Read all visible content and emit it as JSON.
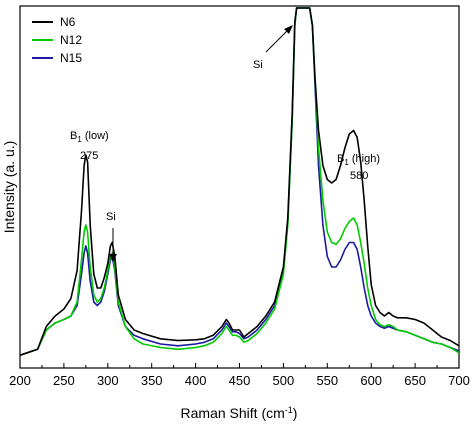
{
  "chart_data": {
    "type": "line",
    "xlabel": "Raman Shift (cm",
    "xlabel_sup": "-1",
    "xlabel_end": ")",
    "ylabel": "Intensity (a. u.)",
    "xlim": [
      200,
      700
    ],
    "ylim": [
      0,
      100
    ],
    "xticks": [
      200,
      250,
      300,
      350,
      400,
      450,
      500,
      550,
      600,
      650,
      700
    ],
    "yticks_shown": false,
    "legend_position": "top-left",
    "series": [
      {
        "name": "N6",
        "color": "#000000",
        "points": [
          [
            200,
            0.8
          ],
          [
            220,
            2.5
          ],
          [
            230,
            9
          ],
          [
            240,
            12
          ],
          [
            250,
            14
          ],
          [
            258,
            17
          ],
          [
            265,
            25
          ],
          [
            270,
            42
          ],
          [
            273,
            55
          ],
          [
            275,
            58
          ],
          [
            277,
            56
          ],
          [
            280,
            38
          ],
          [
            284,
            24
          ],
          [
            288,
            20
          ],
          [
            292,
            20
          ],
          [
            296,
            23
          ],
          [
            300,
            27
          ],
          [
            303,
            32
          ],
          [
            305,
            33
          ],
          [
            308,
            29
          ],
          [
            312,
            18
          ],
          [
            320,
            11
          ],
          [
            330,
            8
          ],
          [
            340,
            7
          ],
          [
            360,
            5.5
          ],
          [
            380,
            5
          ],
          [
            400,
            5.2
          ],
          [
            410,
            5.5
          ],
          [
            420,
            6.5
          ],
          [
            430,
            9
          ],
          [
            435,
            11
          ],
          [
            438,
            10
          ],
          [
            442,
            8
          ],
          [
            446,
            8
          ],
          [
            450,
            8
          ],
          [
            455,
            6
          ],
          [
            460,
            7
          ],
          [
            470,
            9
          ],
          [
            480,
            12
          ],
          [
            490,
            16
          ],
          [
            500,
            26
          ],
          [
            505,
            40
          ],
          [
            510,
            70
          ],
          [
            513,
            96
          ],
          [
            515,
            100
          ],
          [
            530,
            100
          ],
          [
            533,
            95
          ],
          [
            536,
            80
          ],
          [
            540,
            65
          ],
          [
            545,
            55
          ],
          [
            550,
            51
          ],
          [
            555,
            50
          ],
          [
            560,
            51
          ],
          [
            565,
            55
          ],
          [
            570,
            60
          ],
          [
            575,
            64
          ],
          [
            580,
            65
          ],
          [
            584,
            63
          ],
          [
            588,
            56
          ],
          [
            592,
            45
          ],
          [
            596,
            32
          ],
          [
            600,
            21
          ],
          [
            605,
            15
          ],
          [
            610,
            13
          ],
          [
            615,
            12
          ],
          [
            620,
            13
          ],
          [
            625,
            12
          ],
          [
            630,
            11.5
          ],
          [
            640,
            11.5
          ],
          [
            650,
            11
          ],
          [
            660,
            10
          ],
          [
            670,
            8
          ],
          [
            680,
            6
          ],
          [
            690,
            5
          ],
          [
            700,
            3.5
          ]
        ]
      },
      {
        "name": "N12",
        "color": "#00cc00",
        "points": [
          [
            200,
            0.8
          ],
          [
            220,
            2.5
          ],
          [
            230,
            8
          ],
          [
            240,
            10
          ],
          [
            250,
            11
          ],
          [
            258,
            12
          ],
          [
            265,
            16
          ],
          [
            270,
            28
          ],
          [
            273,
            36
          ],
          [
            275,
            38
          ],
          [
            277,
            36
          ],
          [
            280,
            26
          ],
          [
            284,
            18
          ],
          [
            288,
            16
          ],
          [
            292,
            17
          ],
          [
            296,
            20
          ],
          [
            300,
            25
          ],
          [
            303,
            29
          ],
          [
            305,
            30
          ],
          [
            308,
            26
          ],
          [
            312,
            16
          ],
          [
            320,
            9
          ],
          [
            330,
            5.5
          ],
          [
            340,
            4
          ],
          [
            360,
            3
          ],
          [
            380,
            2.5
          ],
          [
            400,
            3
          ],
          [
            410,
            3.5
          ],
          [
            420,
            4.5
          ],
          [
            430,
            7
          ],
          [
            435,
            9
          ],
          [
            438,
            8
          ],
          [
            442,
            6.5
          ],
          [
            446,
            6.5
          ],
          [
            450,
            6
          ],
          [
            455,
            4.5
          ],
          [
            460,
            5
          ],
          [
            470,
            7
          ],
          [
            480,
            10
          ],
          [
            490,
            14
          ],
          [
            500,
            24
          ],
          [
            505,
            38
          ],
          [
            510,
            68
          ],
          [
            513,
            95
          ],
          [
            515,
            100
          ],
          [
            530,
            100
          ],
          [
            533,
            95
          ],
          [
            536,
            80
          ],
          [
            540,
            60
          ],
          [
            545,
            45
          ],
          [
            550,
            36
          ],
          [
            555,
            33
          ],
          [
            560,
            32.5
          ],
          [
            565,
            34
          ],
          [
            570,
            37
          ],
          [
            575,
            39
          ],
          [
            580,
            40
          ],
          [
            584,
            38
          ],
          [
            588,
            33
          ],
          [
            592,
            27
          ],
          [
            596,
            20
          ],
          [
            600,
            15
          ],
          [
            605,
            11
          ],
          [
            610,
            9.5
          ],
          [
            615,
            9
          ],
          [
            620,
            9.5
          ],
          [
            625,
            9
          ],
          [
            630,
            8
          ],
          [
            640,
            7.5
          ],
          [
            650,
            6.5
          ],
          [
            660,
            5.5
          ],
          [
            670,
            4.5
          ],
          [
            680,
            4
          ],
          [
            690,
            3
          ],
          [
            700,
            1.5
          ]
        ]
      },
      {
        "name": "N15",
        "color": "#1a1aa0",
        "points": [
          [
            200,
            0.8
          ],
          [
            220,
            2.5
          ],
          [
            230,
            8
          ],
          [
            240,
            10
          ],
          [
            250,
            11
          ],
          [
            258,
            12
          ],
          [
            265,
            15
          ],
          [
            270,
            24
          ],
          [
            273,
            30
          ],
          [
            275,
            32
          ],
          [
            277,
            30
          ],
          [
            280,
            22
          ],
          [
            284,
            16
          ],
          [
            288,
            15
          ],
          [
            292,
            16
          ],
          [
            296,
            19
          ],
          [
            300,
            24
          ],
          [
            303,
            28
          ],
          [
            305,
            29
          ],
          [
            308,
            25
          ],
          [
            312,
            15
          ],
          [
            320,
            9
          ],
          [
            330,
            6.5
          ],
          [
            340,
            5.5
          ],
          [
            360,
            4
          ],
          [
            380,
            3.5
          ],
          [
            400,
            4
          ],
          [
            410,
            4.5
          ],
          [
            420,
            5.5
          ],
          [
            430,
            8
          ],
          [
            435,
            10
          ],
          [
            438,
            9
          ],
          [
            442,
            7.5
          ],
          [
            446,
            7.5
          ],
          [
            450,
            7
          ],
          [
            455,
            5.5
          ],
          [
            460,
            6
          ],
          [
            470,
            8
          ],
          [
            480,
            11
          ],
          [
            490,
            15
          ],
          [
            500,
            25
          ],
          [
            505,
            39
          ],
          [
            510,
            68
          ],
          [
            513,
            95
          ],
          [
            515,
            100
          ],
          [
            530,
            100
          ],
          [
            533,
            95
          ],
          [
            536,
            78
          ],
          [
            540,
            55
          ],
          [
            545,
            38
          ],
          [
            550,
            29
          ],
          [
            555,
            26
          ],
          [
            560,
            26
          ],
          [
            565,
            28
          ],
          [
            570,
            31
          ],
          [
            575,
            33
          ],
          [
            580,
            33
          ],
          [
            584,
            31
          ],
          [
            588,
            26
          ],
          [
            592,
            20
          ],
          [
            596,
            15
          ],
          [
            600,
            12
          ],
          [
            605,
            10
          ],
          [
            610,
            9
          ],
          [
            615,
            8.5
          ],
          [
            620,
            9
          ],
          [
            625,
            8.5
          ],
          [
            630,
            8
          ],
          [
            640,
            7.5
          ],
          [
            650,
            6.5
          ],
          [
            660,
            5.5
          ],
          [
            670,
            4.5
          ],
          [
            680,
            4
          ],
          [
            690,
            3
          ],
          [
            700,
            2
          ]
        ]
      }
    ],
    "annotations": [
      {
        "id": "b1-low",
        "label": "B",
        "sub": "1",
        "rest": " (low)",
        "x": 275,
        "y": 77
      },
      {
        "id": "275",
        "label": "275",
        "x": 275,
        "y": 71
      },
      {
        "id": "si-left",
        "label": "Si",
        "x": 305,
        "y": 49
      },
      {
        "id": "si-mid",
        "label": "Si",
        "x": 500,
        "y": 91
      },
      {
        "id": "b1-high",
        "label": "B",
        "sub": "1",
        "rest": " (high)",
        "x": 580,
        "y": 73
      },
      {
        "id": "580",
        "label": "580",
        "x": 580,
        "y": 67
      }
    ]
  }
}
